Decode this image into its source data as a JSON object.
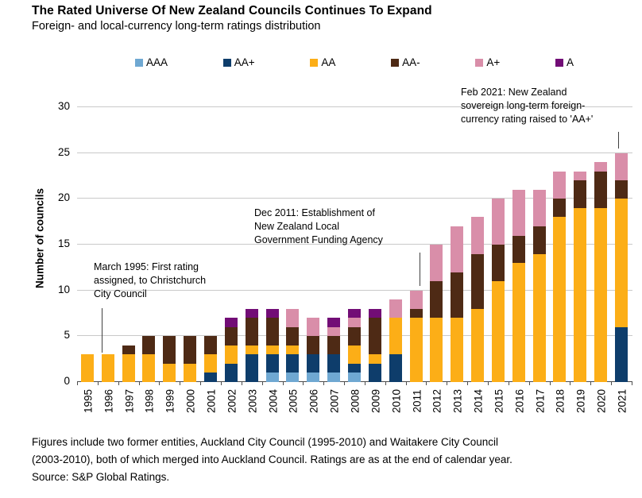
{
  "title": "The Rated Universe Of New Zealand Councils Continues To Expand",
  "subtitle": "Foreign- and local-currency long-term ratings distribution",
  "annotations": {
    "march_1995": {
      "lines": [
        "March 1995: First rating",
        "assigned, to Christchurch",
        "City Council"
      ]
    },
    "dec_2011": {
      "lines": [
        "Dec 2011: Establishment of",
        "New Zealand Local",
        "Government Funding Agency"
      ]
    },
    "feb_2021": {
      "lines": [
        "Feb 2021: New Zealand",
        "sovereign long-term foreign-",
        "currency rating raised to 'AA+'"
      ]
    }
  },
  "footer": {
    "line1": "Figures include two former entities, Auckland City Council (1995-2010) and Waitakere City Council",
    "line2": "(2003-2010), both of which merged into Auckland Council. Ratings are as at the end of calendar year.",
    "line3": "Source: S&P Global Ratings."
  },
  "chart_data": {
    "type": "bar",
    "stacked": true,
    "title": "The Rated Universe Of New Zealand Councils Continues To Expand",
    "subtitle": "Foreign- and local-currency long-term ratings distribution",
    "ylabel": "Number of councils",
    "xlabel": "",
    "ylim": [
      0,
      30
    ],
    "yticks": [
      0,
      5,
      10,
      15,
      20,
      25,
      30
    ],
    "grid": true,
    "legend_position": "top",
    "categories": [
      "1995",
      "1996",
      "1997",
      "1998",
      "1999",
      "2000",
      "2001",
      "2002",
      "2003",
      "2004",
      "2005",
      "2006",
      "2007",
      "2008",
      "2009",
      "2010",
      "2011",
      "2012",
      "2013",
      "2014",
      "2015",
      "2016",
      "2017",
      "2018",
      "2019",
      "2020",
      "2021"
    ],
    "series": [
      {
        "name": "AAA",
        "color": "#6fa8d2",
        "values": [
          0,
          0,
          0,
          0,
          0,
          0,
          0,
          0,
          0,
          1,
          1,
          1,
          1,
          1,
          0,
          0,
          0,
          0,
          0,
          0,
          0,
          0,
          0,
          0,
          0,
          0,
          0
        ]
      },
      {
        "name": "AA+",
        "color": "#0e3d6b",
        "values": [
          0,
          0,
          0,
          0,
          0,
          0,
          1,
          2,
          3,
          2,
          2,
          2,
          2,
          1,
          2,
          3,
          0,
          0,
          0,
          0,
          0,
          0,
          0,
          0,
          0,
          0,
          6
        ]
      },
      {
        "name": "AA",
        "color": "#fcae17",
        "values": [
          3,
          3,
          3,
          3,
          2,
          2,
          2,
          2,
          1,
          1,
          1,
          0,
          0,
          2,
          1,
          4,
          7,
          7,
          7,
          8,
          11,
          13,
          14,
          18,
          19,
          19,
          14
        ]
      },
      {
        "name": "AA-",
        "color": "#4e2a15",
        "values": [
          0,
          0,
          1,
          2,
          3,
          3,
          2,
          2,
          3,
          3,
          2,
          2,
          2,
          2,
          4,
          0,
          1,
          4,
          5,
          6,
          4,
          3,
          3,
          2,
          3,
          4,
          2
        ]
      },
      {
        "name": "A+",
        "color": "#d98ea9",
        "values": [
          0,
          0,
          0,
          0,
          0,
          0,
          0,
          0,
          0,
          0,
          2,
          2,
          1,
          1,
          0,
          2,
          2,
          4,
          5,
          4,
          5,
          5,
          4,
          3,
          1,
          1,
          3
        ]
      },
      {
        "name": "A",
        "color": "#720d76",
        "values": [
          0,
          0,
          0,
          0,
          0,
          0,
          0,
          1,
          1,
          1,
          0,
          0,
          1,
          1,
          1,
          0,
          0,
          0,
          0,
          0,
          0,
          0,
          0,
          0,
          0,
          0,
          0
        ]
      }
    ],
    "annotation_totals_note": {
      "totals": [
        3,
        3,
        4,
        5,
        5,
        5,
        5,
        7,
        8,
        8,
        8,
        7,
        7,
        8,
        8,
        9,
        10,
        15,
        17,
        18,
        20,
        21,
        21,
        23,
        23,
        24,
        25
      ]
    }
  }
}
